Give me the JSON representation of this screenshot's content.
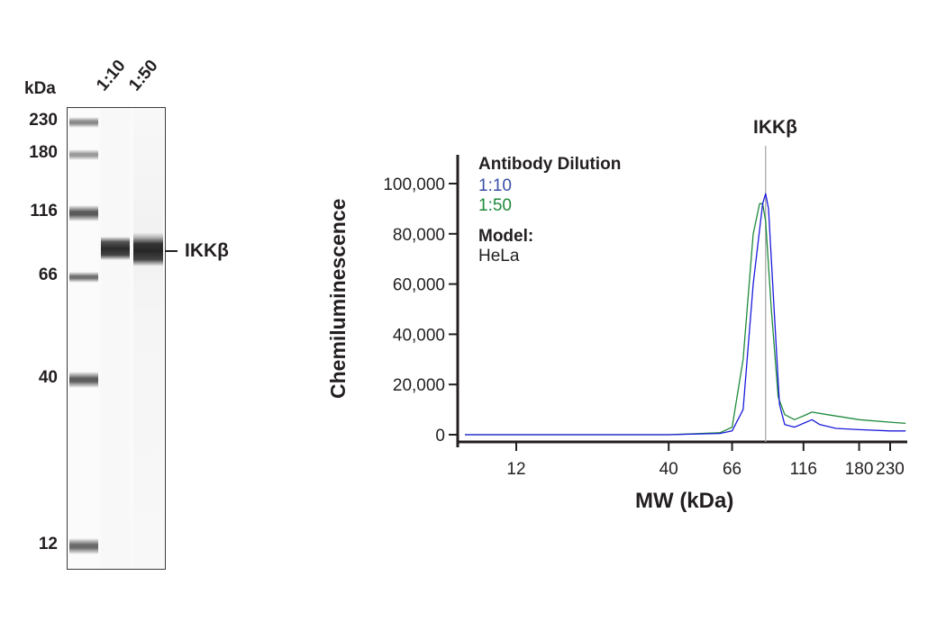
{
  "blot": {
    "unit_label": "kDa",
    "lane_labels": [
      "1:10",
      "1:50"
    ],
    "markers": [
      {
        "label": "230",
        "y": 135
      },
      {
        "label": "180",
        "y": 171
      },
      {
        "label": "116",
        "y": 236
      },
      {
        "label": "66",
        "y": 307
      },
      {
        "label": "40",
        "y": 421
      },
      {
        "label": "12",
        "y": 606
      }
    ],
    "target_label": "IKKβ"
  },
  "chart_data": {
    "type": "line",
    "title": "IKKβ",
    "xlabel": "MW (kDa)",
    "ylabel": "Chemiluminescence",
    "x_scale": "log",
    "x_ticks": [
      12,
      40,
      66,
      116,
      180,
      230
    ],
    "x_tick_labels": [
      "12",
      "40",
      "66",
      "116",
      "180",
      "230"
    ],
    "y_ticks": [
      0,
      20000,
      40000,
      60000,
      80000,
      100000
    ],
    "y_tick_labels": [
      "0",
      "20,000",
      "40,000",
      "60,000",
      "80,000",
      "100,000"
    ],
    "ylim": [
      0,
      110000
    ],
    "xlim": [
      8,
      260
    ],
    "grid": false,
    "marker_line": {
      "label": "IKKβ",
      "x_kda": 86
    },
    "legend": {
      "title": "Antibody Dilution",
      "entries": [
        {
          "label": "1:10",
          "color": "#3a4fa8"
        },
        {
          "label": "1:50",
          "color": "#1f8a3c"
        }
      ],
      "model_title": "Model:",
      "model_value": "HeLa"
    },
    "series": [
      {
        "name": "1:10",
        "color": "#1a1adc",
        "points": [
          [
            8,
            0
          ],
          [
            12,
            0
          ],
          [
            40,
            0
          ],
          [
            60,
            500
          ],
          [
            66,
            1500
          ],
          [
            72,
            10000
          ],
          [
            78,
            60000
          ],
          [
            84,
            92000
          ],
          [
            86,
            96000
          ],
          [
            88,
            90000
          ],
          [
            92,
            50000
          ],
          [
            96,
            12000
          ],
          [
            100,
            4000
          ],
          [
            108,
            3000
          ],
          [
            116,
            4500
          ],
          [
            124,
            6000
          ],
          [
            132,
            4000
          ],
          [
            150,
            2500
          ],
          [
            180,
            2000
          ],
          [
            230,
            1500
          ],
          [
            260,
            1500
          ]
        ]
      },
      {
        "name": "1:50",
        "color": "#1f8a3c",
        "points": [
          [
            8,
            0
          ],
          [
            12,
            0
          ],
          [
            40,
            0
          ],
          [
            60,
            800
          ],
          [
            66,
            3000
          ],
          [
            72,
            30000
          ],
          [
            78,
            80000
          ],
          [
            82,
            92000
          ],
          [
            84,
            92000
          ],
          [
            86,
            85000
          ],
          [
            90,
            50000
          ],
          [
            95,
            15000
          ],
          [
            100,
            8000
          ],
          [
            108,
            6000
          ],
          [
            116,
            7500
          ],
          [
            124,
            9000
          ],
          [
            140,
            8000
          ],
          [
            180,
            6000
          ],
          [
            230,
            5000
          ],
          [
            260,
            4500
          ]
        ]
      }
    ]
  }
}
